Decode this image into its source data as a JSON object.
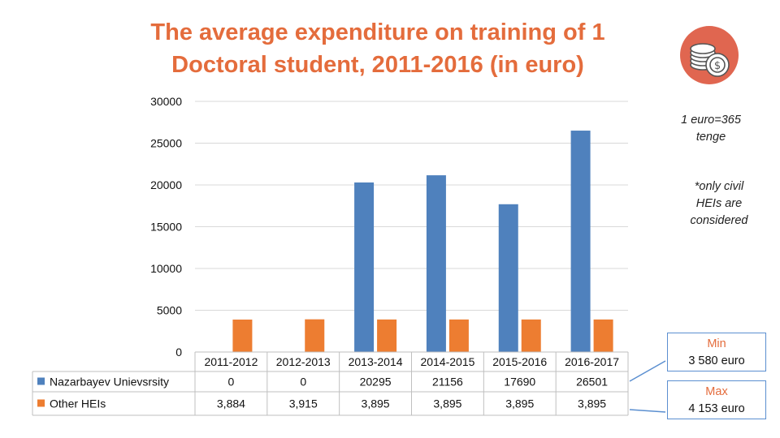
{
  "title": {
    "line1": "The average expenditure on training of 1",
    "line2": "Doctoral student, 2011-2016 (in euro)"
  },
  "chart_data": {
    "type": "bar",
    "categories": [
      "2011-2012",
      "2012-2013",
      "2013-2014",
      "2014-2015",
      "2015-2016",
      "2016-2017"
    ],
    "series": [
      {
        "name": "Nazarbayev Unievsrsity",
        "color": "#4f81bd",
        "values": [
          0,
          0,
          20295,
          21156,
          17690,
          26501
        ],
        "labels": [
          "0",
          "0",
          "20295",
          "21156",
          "17690",
          "26501"
        ]
      },
      {
        "name": "Other HEIs",
        "color": "#ed7d31",
        "values": [
          3884,
          3915,
          3895,
          3895,
          3895,
          3895
        ],
        "labels": [
          "3,884",
          "3,915",
          "3,895",
          "3,895",
          "3,895",
          "3,895"
        ]
      }
    ],
    "yticks": [
      "0",
      "5000",
      "10000",
      "15000",
      "20000",
      "25000",
      "30000"
    ],
    "ylim": [
      0,
      30000
    ],
    "grid": true,
    "legend": "data-table"
  },
  "notes": {
    "exchange": [
      "1 euro=365",
      "tenge"
    ],
    "scope": [
      "*only civil",
      "HEIs are",
      "considered"
    ]
  },
  "callouts": {
    "min_label": "Min",
    "min_value": "3 580 euro",
    "max_label": "Max",
    "max_value": "4 153 euro"
  },
  "colors": {
    "title": "#e46c3c",
    "accent": "#5b8fd0",
    "coin_circle": "#e06650"
  },
  "icon": "coins-icon"
}
